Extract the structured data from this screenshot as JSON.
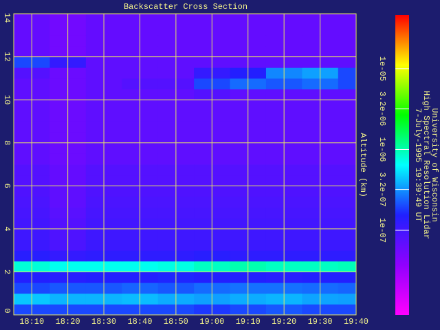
{
  "chart_data": {
    "type": "heatmap",
    "title": "Backscatter Cross Section",
    "ylabel": "Altitude (km)",
    "side_text": [
      "University of Wisconsin",
      "High Spectral Resolution Lidar",
      "7-July-1995 19:39:49 UT"
    ],
    "xlim": [
      1085,
      1180
    ],
    "xticks": [
      {
        "value": 1090,
        "label": "18:10"
      },
      {
        "value": 1100,
        "label": "18:20"
      },
      {
        "value": 1110,
        "label": "18:30"
      },
      {
        "value": 1120,
        "label": "18:40"
      },
      {
        "value": 1130,
        "label": "18:50"
      },
      {
        "value": 1140,
        "label": "19:00"
      },
      {
        "value": 1150,
        "label": "19:10"
      },
      {
        "value": 1160,
        "label": "19:20"
      },
      {
        "value": 1170,
        "label": "19:30"
      },
      {
        "value": 1180,
        "label": "19:40"
      }
    ],
    "ylim": [
      0,
      14
    ],
    "yticks": [
      0,
      2,
      4,
      6,
      8,
      10,
      12,
      14
    ],
    "grid": true,
    "grid_color": "#e8e860",
    "xbins": [
      1085,
      1095,
      1105,
      1115,
      1125,
      1135,
      1145,
      1155,
      1165,
      1175,
      1180
    ],
    "ybins": [
      0,
      0.5,
      1,
      1.5,
      2,
      2.5,
      3,
      3.5,
      4,
      4.5,
      5,
      5.5,
      6,
      6.5,
      7,
      7.5,
      8,
      8.5,
      9,
      9.5,
      10,
      10.5,
      11,
      11.5,
      12,
      12.5,
      13,
      13.5,
      14
    ],
    "z": [
      [
        2e-07,
        2e-07,
        2e-07,
        2e-07,
        2e-07,
        1.8e-07,
        2e-07,
        2.2e-07,
        2e-07,
        2e-07
      ],
      [
        4.5e-07,
        4e-07,
        4e-07,
        4.2e-07,
        3.8e-07,
        3.5e-07,
        3.8e-07,
        4e-07,
        3.6e-07,
        3.5e-07
      ],
      [
        2e-07,
        2.2e-07,
        2.2e-07,
        2.4e-07,
        2.2e-07,
        2.5e-07,
        2.6e-07,
        2.6e-07,
        2.5e-07,
        2.4e-07
      ],
      [
        1.5e-07,
        1.4e-07,
        1.5e-07,
        1.5e-07,
        1.6e-07,
        1.5e-07,
        1.5e-07,
        1.4e-07,
        1.5e-07,
        1.5e-07
      ],
      [
        8e-07,
        7e-07,
        7e-07,
        7e-07,
        7.5e-07,
        9e-07,
        1e-06,
        9e-07,
        9e-07,
        9.5e-07
      ],
      [
        1.4e-07,
        1.2e-07,
        1.3e-07,
        1.3e-07,
        1.3e-07,
        1.4e-07,
        1.3e-07,
        1.3e-07,
        1.3e-07,
        1.3e-07
      ],
      [
        1.1e-07,
        9e-08,
        1.1e-07,
        1.1e-07,
        1.1e-07,
        1.1e-07,
        1.1e-07,
        1.1e-07,
        1.1e-07,
        1.1e-07
      ],
      [
        1.05e-07,
        8.5e-08,
        1.05e-07,
        1.05e-07,
        1.05e-07,
        1.05e-07,
        1.05e-07,
        1.05e-07,
        1.05e-07,
        1.05e-07
      ],
      [
        1e-07,
        8e-08,
        1e-07,
        1e-07,
        1e-07,
        1e-07,
        1e-07,
        1e-07,
        1e-07,
        1e-07
      ],
      [
        9.5e-08,
        7.5e-08,
        9.5e-08,
        9.5e-08,
        9.5e-08,
        9.5e-08,
        9.5e-08,
        9.5e-08,
        9.5e-08,
        9.5e-08
      ],
      [
        9e-08,
        7e-08,
        9e-08,
        9e-08,
        9e-08,
        9e-08,
        9e-08,
        9e-08,
        9e-08,
        9e-08
      ],
      [
        8.5e-08,
        7e-08,
        8.5e-08,
        8.5e-08,
        8.5e-08,
        8.5e-08,
        8.5e-08,
        8.5e-08,
        8.5e-08,
        8.5e-08
      ],
      [
        8e-08,
        6.5e-08,
        8e-08,
        8e-08,
        8e-08,
        8e-08,
        8e-08,
        8e-08,
        8e-08,
        8e-08
      ],
      [
        8e-08,
        6.5e-08,
        8e-08,
        8e-08,
        8e-08,
        8e-08,
        8e-08,
        8e-08,
        8e-08,
        8e-08
      ],
      [
        7e-08,
        6e-08,
        7e-08,
        7e-08,
        7e-08,
        7e-08,
        7e-08,
        7e-08,
        7e-08,
        7e-08
      ],
      [
        7e-08,
        6e-08,
        7e-08,
        7e-08,
        7e-08,
        7e-08,
        7e-08,
        7e-08,
        7e-08,
        7e-08
      ],
      [
        7e-08,
        6e-08,
        7e-08,
        7e-08,
        7e-08,
        7e-08,
        7e-08,
        7e-08,
        7e-08,
        7e-08
      ],
      [
        7e-08,
        6e-08,
        7e-08,
        7e-08,
        7e-08,
        7e-08,
        7e-08,
        7e-08,
        7e-08,
        7e-08
      ],
      [
        7e-08,
        6e-08,
        7e-08,
        7e-08,
        7e-08,
        7e-08,
        7e-08,
        7e-08,
        7e-08,
        7e-08
      ],
      [
        7e-08,
        6e-08,
        7e-08,
        7e-08,
        7e-08,
        7e-08,
        7e-08,
        7e-08,
        7e-08,
        7e-08
      ],
      [
        7e-08,
        6e-08,
        7e-08,
        7e-08,
        7e-08,
        8e-08,
        7e-08,
        7e-08,
        7e-08,
        7e-08
      ],
      [
        7e-08,
        6e-08,
        7e-08,
        8e-08,
        8e-08,
        2e-07,
        2.5e-07,
        2.2e-07,
        2.5e-07,
        2e-07
      ],
      [
        8e-08,
        6e-08,
        7e-08,
        7e-08,
        7e-08,
        1.2e-07,
        1.5e-07,
        3e-07,
        3.5e-07,
        2e-07
      ],
      [
        2e-07,
        1.2e-07,
        7e-08,
        7e-08,
        7e-08,
        7e-08,
        7e-08,
        7e-08,
        7e-08,
        7e-08
      ],
      [
        6.5e-08,
        5.5e-08,
        6.5e-08,
        6.5e-08,
        6.5e-08,
        6.5e-08,
        6.5e-08,
        6.5e-08,
        6.5e-08,
        6.5e-08
      ],
      [
        6.5e-08,
        5.5e-08,
        6.5e-08,
        6.5e-08,
        6.5e-08,
        6.5e-08,
        6.5e-08,
        6.5e-08,
        6.5e-08,
        6.5e-08
      ],
      [
        6.5e-08,
        5.5e-08,
        6.5e-08,
        6.5e-08,
        6.5e-08,
        6.5e-08,
        6.5e-08,
        6.5e-08,
        6.5e-08,
        6.5e-08
      ],
      [
        6.5e-08,
        5.5e-08,
        6.5e-08,
        6.5e-08,
        6.5e-08,
        6.5e-08,
        6.5e-08,
        6.5e-08,
        6.5e-08,
        6.5e-08
      ]
    ],
    "color_scale": "log",
    "clim": [
      9e-09,
      4.6e-05
    ],
    "colormap": [
      "#ff00ff",
      "#9000ff",
      "#2020ff",
      "#00ffff",
      "#00ff00",
      "#ffff00",
      "#ff0000"
    ],
    "cticks": [
      {
        "value": 1e-07,
        "label": "1e-07"
      },
      {
        "value": 3.2e-07,
        "label": "3.2e-07"
      },
      {
        "value": 1e-06,
        "label": "1e-06"
      },
      {
        "value": 3.2e-06,
        "label": "3.2e-06"
      },
      {
        "value": 1e-05,
        "label": "1e-05"
      }
    ]
  }
}
